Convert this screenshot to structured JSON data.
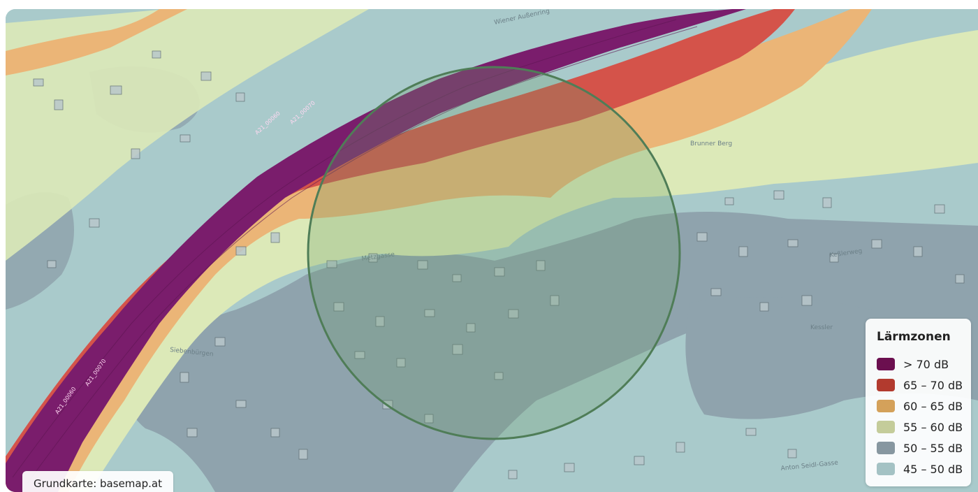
{
  "map": {
    "attribution": "Grundkarte: basemap.at",
    "street_labels": [
      "Wiener Außenring",
      "Brunner Berg",
      "Keßlerweg",
      "Anton Seidl-Gasse",
      "Siebenbürgen",
      "Metzgasse",
      "Kessler"
    ],
    "highway_labels": [
      "A21_00060",
      "A21_00070",
      "A21_00060",
      "A21_00070"
    ]
  },
  "legend": {
    "title": "Lärmzonen",
    "items": [
      {
        "label": "> 70 dB",
        "color": "#6b0f4f"
      },
      {
        "label": "65 – 70 dB",
        "color": "#b23a2e"
      },
      {
        "label": "60 – 65 dB",
        "color": "#d4a15a"
      },
      {
        "label": "55 – 60 dB",
        "color": "#c4cc9a"
      },
      {
        "label": "50 – 55 dB",
        "color": "#8797a0"
      },
      {
        "label": "45 – 50 dB",
        "color": "#a4c2c4"
      }
    ]
  },
  "colors": {
    "base": "#a9cacb",
    "zone_70": "#7a1d6c",
    "zone_65": "#d4534a",
    "zone_60": "#ebb577",
    "zone_55": "#dce9b8",
    "zone_50": "#8fa3ad",
    "circle_fill": "#6c9f6c",
    "circle_stroke": "#4f7d57"
  }
}
